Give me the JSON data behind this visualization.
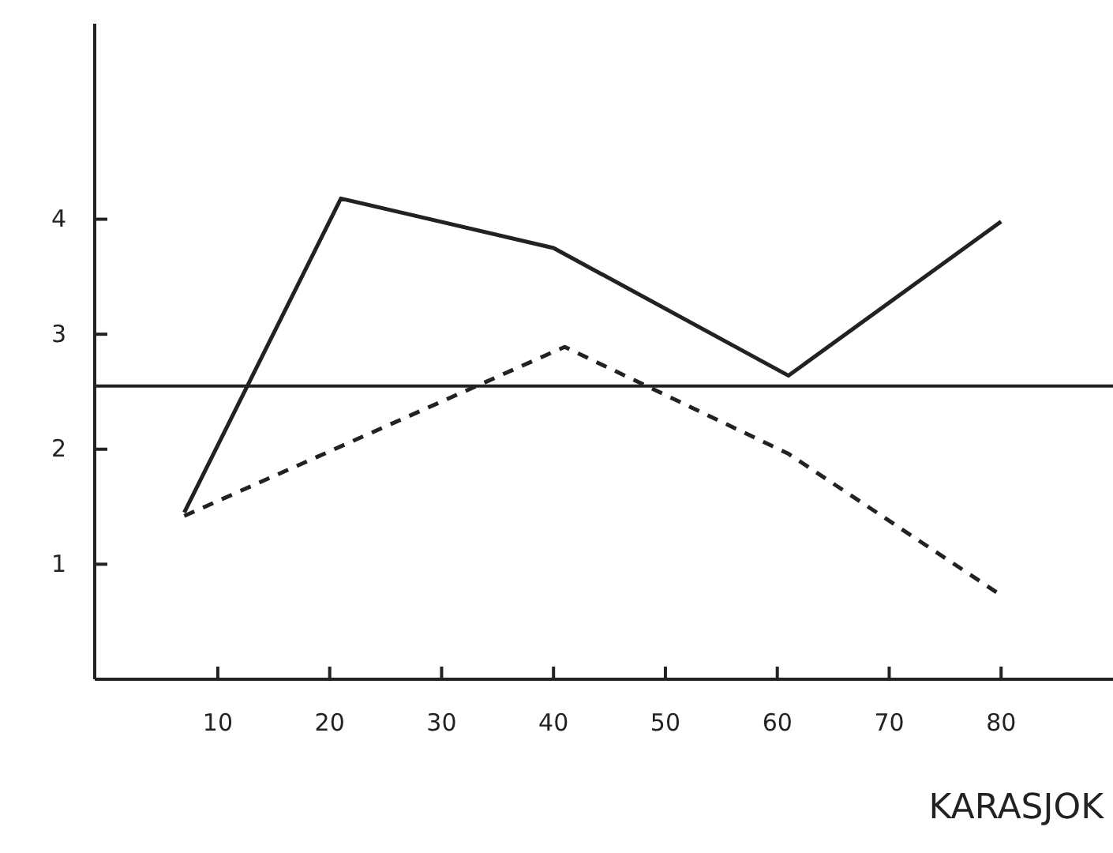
{
  "chart_data": {
    "type": "line",
    "xlabel": "KARASJOK",
    "x": [
      7,
      21,
      40,
      61,
      80
    ],
    "series": [
      {
        "color": "#222222",
        "line_style": "solid",
        "values": [
          1.45,
          4.18,
          3.75,
          2.64,
          3.98
        ]
      },
      {
        "color": "#222222",
        "line_style": "dashed",
        "x": [
          7,
          41,
          61,
          80
        ],
        "values": [
          1.42,
          2.89,
          1.96,
          0.73
        ]
      }
    ],
    "xlim": [
      -1,
      90
    ],
    "ylim": [
      0,
      5.7
    ],
    "xticks": [
      10,
      20,
      30,
      40,
      50,
      60,
      70,
      80
    ],
    "yticks": [
      1,
      2,
      3,
      4
    ],
    "ref_lines": [
      {
        "axis": "y",
        "value": 2.55,
        "color": "#222222"
      }
    ],
    "grid": false,
    "marker": "none"
  }
}
